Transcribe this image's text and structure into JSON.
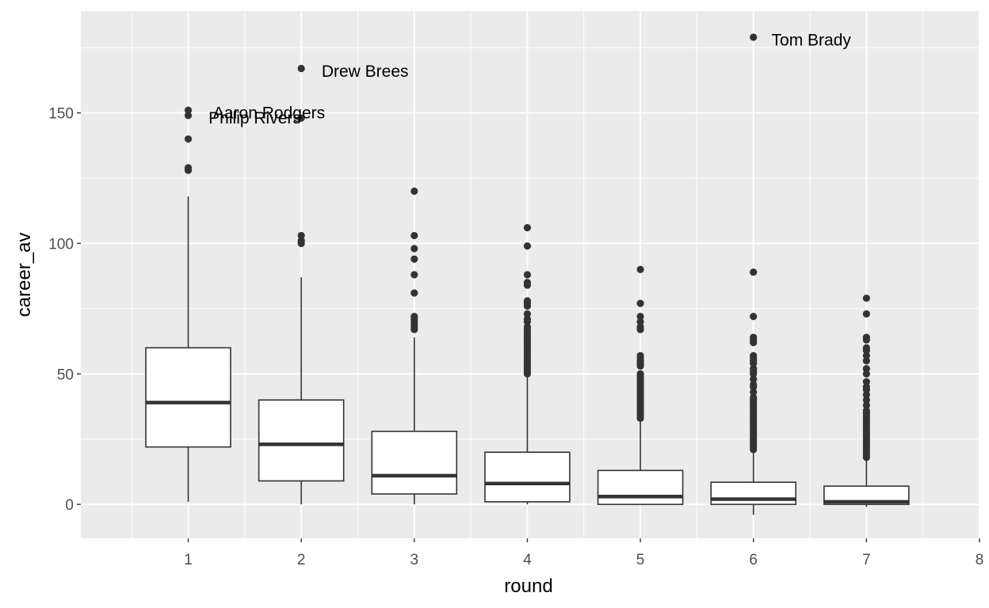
{
  "chart_data": {
    "type": "boxplot",
    "xlabel": "round",
    "ylabel": "career_av",
    "xlim": [
      0.05,
      8
    ],
    "ylim": [
      -13,
      189
    ],
    "x_ticks": [
      "1",
      "2",
      "3",
      "4",
      "5",
      "6",
      "7",
      "8"
    ],
    "y_ticks": [
      "0",
      "50",
      "100",
      "150"
    ],
    "grid": true,
    "colors": {
      "panel": "#ebebeb",
      "grid": "#ffffff",
      "box_fill": "#ffffff",
      "box_line": "#333333"
    },
    "boxes": [
      {
        "round": 1,
        "q1": 22,
        "median": 39,
        "q3": 60,
        "whisker_low": 1,
        "whisker_high": 118,
        "outliers": [
          128,
          129,
          140,
          149,
          151
        ]
      },
      {
        "round": 2,
        "q1": 9,
        "median": 23,
        "q3": 40,
        "whisker_low": 0,
        "whisker_high": 87,
        "outliers": [
          100,
          101,
          103,
          148,
          167
        ]
      },
      {
        "round": 3,
        "q1": 4,
        "median": 11,
        "q3": 28,
        "whisker_low": 0,
        "whisker_high": 64,
        "outliers": [
          67,
          68,
          69,
          70,
          71,
          72,
          81,
          88,
          94,
          98,
          103,
          120
        ]
      },
      {
        "round": 4,
        "q1": 1,
        "median": 8,
        "q3": 20,
        "whisker_low": 0,
        "whisker_high": 49,
        "outliers": [
          50,
          51,
          52,
          53,
          54,
          55,
          56,
          57,
          58,
          59,
          60,
          61,
          62,
          63,
          64,
          65,
          66,
          67,
          68,
          70,
          71,
          73,
          76,
          77,
          78,
          84,
          85,
          88,
          99,
          106
        ]
      },
      {
        "round": 5,
        "q1": 0,
        "median": 3,
        "q3": 13,
        "whisker_low": 0,
        "whisker_high": 33,
        "outliers": [
          33,
          34,
          35,
          36,
          37,
          38,
          39,
          40,
          41,
          42,
          43,
          44,
          45,
          46,
          47,
          48,
          49,
          50,
          53,
          54,
          55,
          56,
          57,
          67,
          68,
          70,
          72,
          77,
          90
        ]
      },
      {
        "round": 6,
        "q1": 0,
        "median": 2,
        "q3": 8.5,
        "whisker_low": -4,
        "whisker_high": 21,
        "outliers": [
          21,
          22,
          23,
          24,
          25,
          26,
          27,
          28,
          29,
          30,
          31,
          32,
          33,
          34,
          35,
          36,
          37,
          38,
          39,
          40,
          41,
          43,
          45,
          46,
          48,
          50,
          51,
          52,
          54,
          55,
          56,
          57,
          62,
          63,
          64,
          72,
          89,
          179
        ]
      },
      {
        "round": 7,
        "q1": 0,
        "median": 1,
        "q3": 7,
        "whisker_low": -1,
        "whisker_high": 17,
        "outliers": [
          18,
          19,
          20,
          21,
          22,
          23,
          24,
          25,
          26,
          27,
          28,
          29,
          30,
          31,
          32,
          33,
          34,
          35,
          36,
          38,
          40,
          42,
          44,
          45,
          47,
          50,
          52,
          55,
          57,
          59,
          60,
          63,
          64,
          73,
          79
        ]
      }
    ],
    "annotations": [
      {
        "text": "Tom Brady",
        "x": 6.16,
        "y": 178
      },
      {
        "text": "Drew Brees",
        "x": 2.18,
        "y": 166
      },
      {
        "text": "Aaron Rodgers",
        "x": 1.22,
        "y": 150
      },
      {
        "text": "Philip Rivers",
        "x": 1.18,
        "y": 148
      }
    ]
  }
}
